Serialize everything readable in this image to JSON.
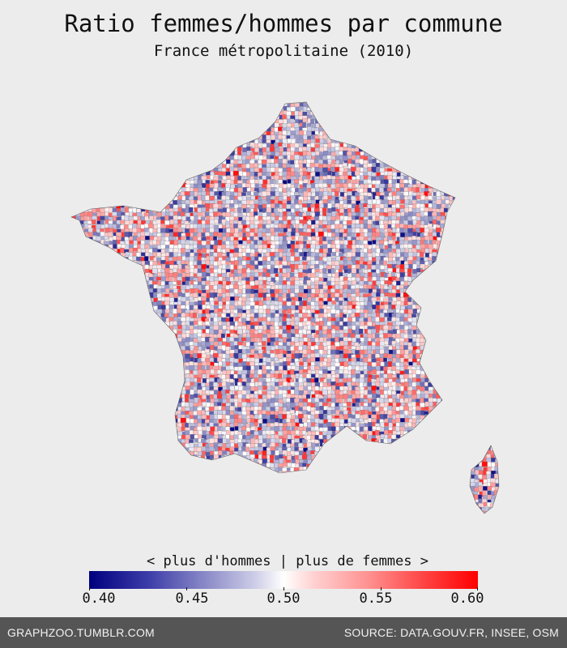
{
  "title": "Ratio femmes/hommes par commune",
  "subtitle": "France métropolitaine (2010)",
  "legend": {
    "label": "< plus d'hommes | plus de femmes >",
    "ticks": [
      "0.40",
      "0.45",
      "0.50",
      "0.55",
      "0.60"
    ],
    "min_value": 0.4,
    "max_value": 0.6,
    "colors": {
      "low": "#00007f",
      "mid": "#ffffff",
      "high": "#ff0000"
    }
  },
  "map": {
    "regions": [
      "france-mainland",
      "corsica"
    ],
    "background_color": "#ececec"
  },
  "footer": {
    "left_text": "GRAPHZOO.TUMBLR.COM",
    "right_text": "SOURCE: DATA.GOUV.FR, INSEE, OSM",
    "background_color": "#555555"
  }
}
